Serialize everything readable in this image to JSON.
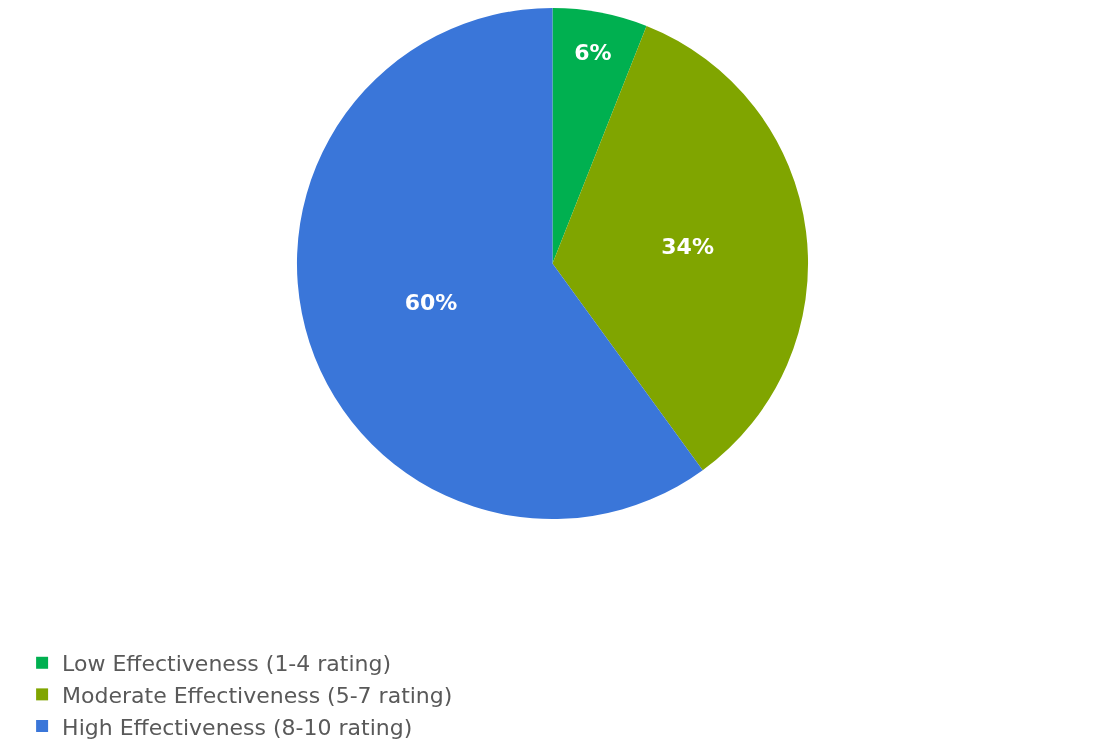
{
  "chart_data": {
    "type": "pie",
    "categories": [
      "Low Effectiveness (1-4 rating)",
      "Moderate Effectiveness (5-7 rating)",
      "High Effectiveness (8-10 rating)"
    ],
    "values": [
      6,
      34,
      60
    ],
    "value_labels": [
      "6%",
      "34%",
      "60%"
    ],
    "colors": [
      "#00b050",
      "#80a500",
      "#3a76d9"
    ],
    "legend": "bottom"
  }
}
